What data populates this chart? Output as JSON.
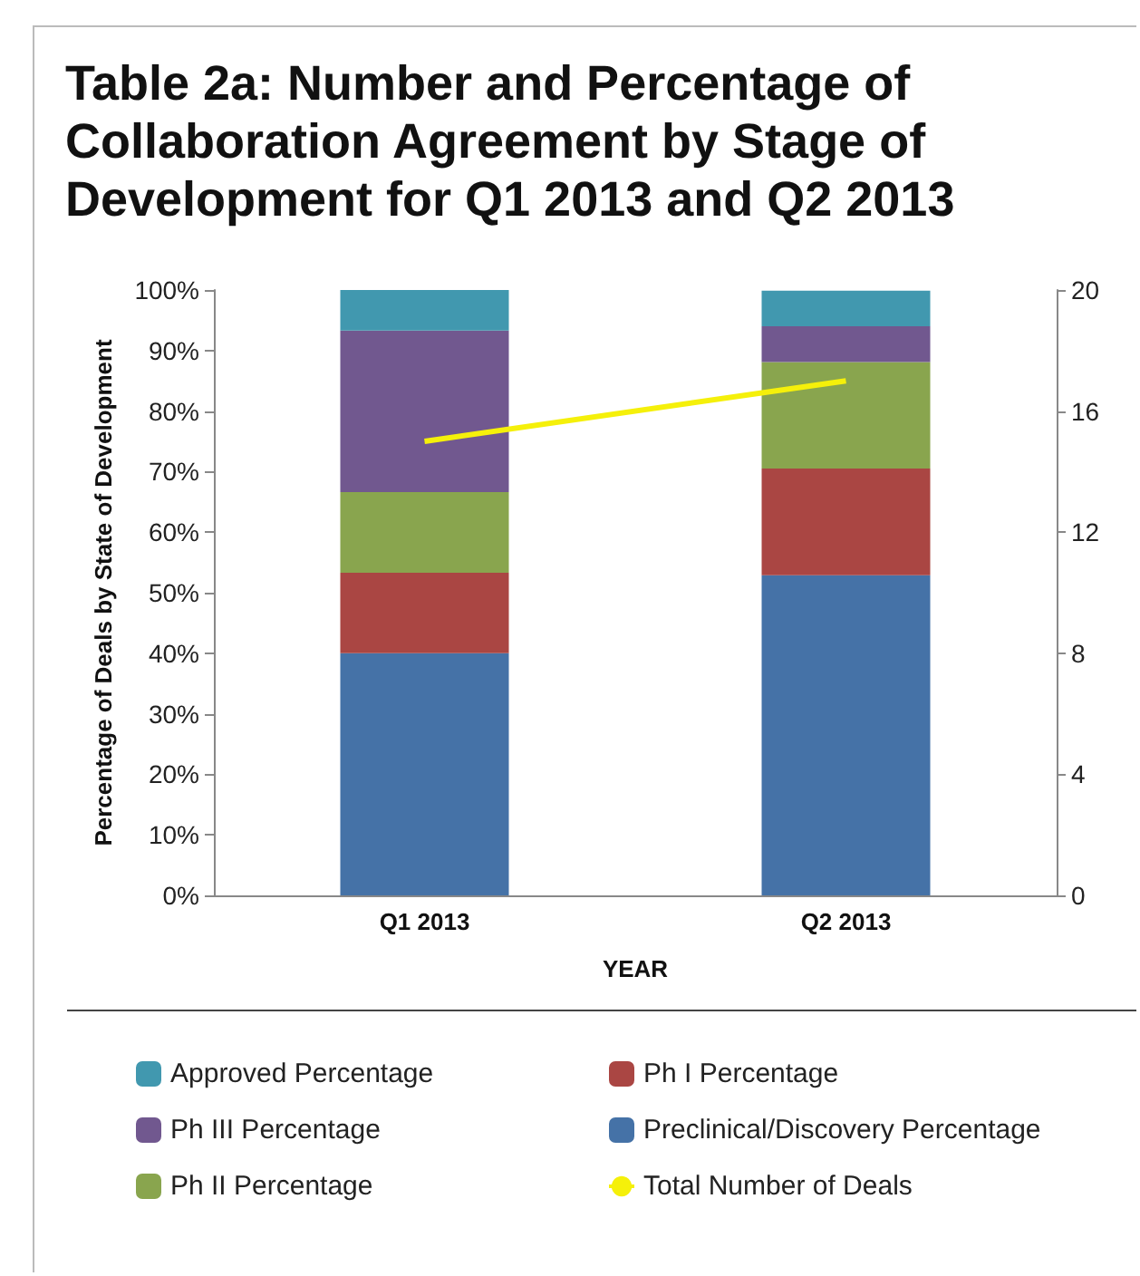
{
  "chart_data": {
    "type": "bar",
    "title": "Table 2a: Number and Percentage of Collaboration Agreement by Stage of Development for Q1 2013 and Q2 2013",
    "xlabel": "YEAR",
    "ylabel": "Percentage of Deals by State of Development",
    "categories": [
      "Q1 2013",
      "Q2 2013"
    ],
    "stacked": true,
    "series": [
      {
        "name": "Preclinical/Discovery Percentage",
        "color": "#4572a7",
        "values": [
          40,
          52.9
        ]
      },
      {
        "name": "Ph I Percentage",
        "color": "#aa4643",
        "values": [
          13.3,
          17.6
        ]
      },
      {
        "name": "Ph II Percentage",
        "color": "#89a54e",
        "values": [
          13.3,
          17.6
        ]
      },
      {
        "name": "Ph III Percentage",
        "color": "#71588f",
        "values": [
          26.7,
          5.9
        ]
      },
      {
        "name": "Approved Percentage",
        "color": "#4198af",
        "values": [
          6.7,
          5.9
        ]
      },
      {
        "name": "Total Number of Deals",
        "type": "line",
        "axis": "y2",
        "color": "#f5f00a",
        "values": [
          15,
          17
        ]
      }
    ],
    "ylim": [
      0,
      100
    ],
    "yticks": [
      {
        "value": 0,
        "label": "0%"
      },
      {
        "value": 10,
        "label": "10%"
      },
      {
        "value": 20,
        "label": "20%"
      },
      {
        "value": 30,
        "label": "30%"
      },
      {
        "value": 40,
        "label": "40%"
      },
      {
        "value": 50,
        "label": "50%"
      },
      {
        "value": 60,
        "label": "60%"
      },
      {
        "value": 70,
        "label": "70%"
      },
      {
        "value": 80,
        "label": "80%"
      },
      {
        "value": 90,
        "label": "90%"
      },
      {
        "value": 100,
        "label": "100%"
      }
    ],
    "y2lim": [
      0,
      20
    ],
    "y2ticks": [
      0,
      4,
      8,
      12,
      16,
      20
    ],
    "grid": false,
    "legend": "bottom",
    "marker": "none"
  }
}
